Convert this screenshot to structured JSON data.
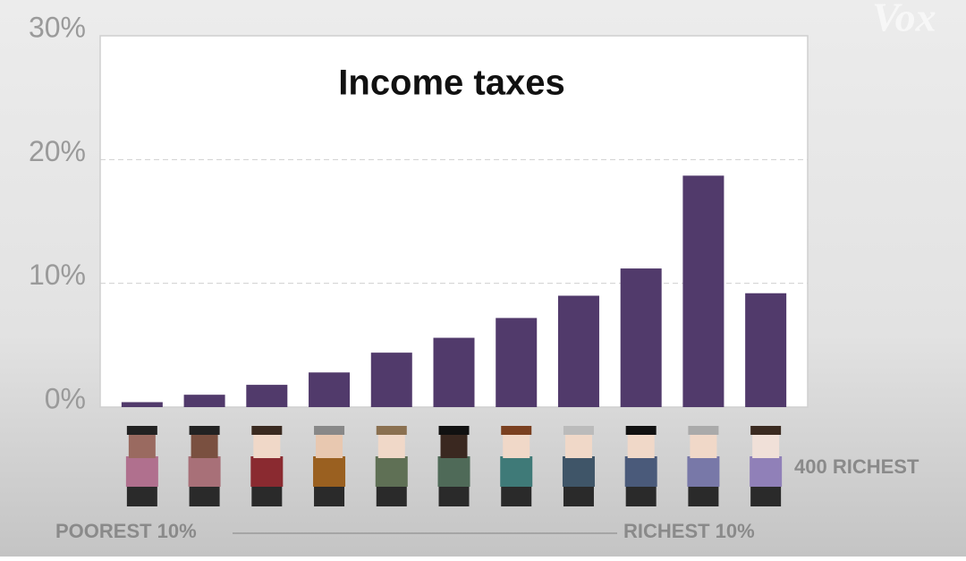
{
  "chart_data": {
    "type": "bar",
    "title": "Income taxes",
    "values": [
      0.4,
      1.0,
      1.8,
      2.8,
      4.4,
      5.6,
      7.2,
      9.0,
      11.2,
      18.7,
      9.2
    ],
    "color": "#513a6b",
    "ylim": [
      0,
      30
    ],
    "yticks": [
      {
        "value": 0,
        "label": "0%"
      },
      {
        "value": 10,
        "label": "10%"
      },
      {
        "value": 20,
        "label": "20%"
      },
      {
        "value": 30,
        "label": "30%"
      }
    ],
    "grid": true,
    "left_label": "POOREST 10%",
    "right_label": "RICHEST 10%",
    "last_label": "400 RICHEST",
    "logo": "Vox"
  }
}
